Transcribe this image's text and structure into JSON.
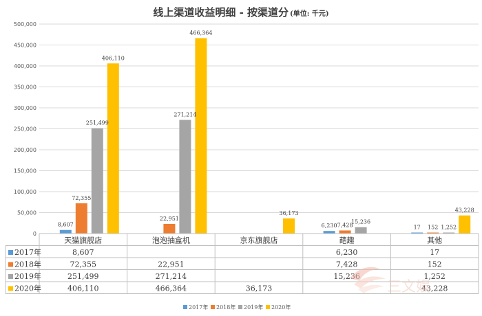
{
  "chart_data": {
    "type": "bar",
    "title": "线上渠道收益明细 - 按渠道分",
    "unit": "(单位: 千元)",
    "categories": [
      "天猫旗舰店",
      "泡泡抽盒机",
      "京东旗舰店",
      "葩趣",
      "其他"
    ],
    "series": [
      {
        "name": "2017年",
        "color": "#5B9BD5",
        "values": [
          8607,
          null,
          null,
          6230,
          17
        ],
        "labels": [
          "8,607",
          "",
          "",
          "6,230",
          "17"
        ]
      },
      {
        "name": "2018年",
        "color": "#ED7D31",
        "values": [
          72355,
          22951,
          null,
          7428,
          152
        ],
        "labels": [
          "72,355",
          "22,951",
          "",
          "7,428",
          "152"
        ]
      },
      {
        "name": "2019年",
        "color": "#A5A5A5",
        "values": [
          251499,
          271214,
          null,
          15236,
          1252
        ],
        "labels": [
          "251,499",
          "271,214",
          "",
          "15,236",
          "1,252"
        ]
      },
      {
        "name": "2020年",
        "color": "#FFC000",
        "values": [
          406110,
          466364,
          36173,
          null,
          43228
        ],
        "labels": [
          "406,110",
          "466,364",
          "36,173",
          "",
          "43,228"
        ]
      }
    ],
    "y_ticks": [
      "0",
      "50,000",
      "100,000",
      "150,000",
      "200,000",
      "250,000",
      "300,000",
      "350,000",
      "400,000",
      "450,000",
      "500,000"
    ],
    "ylim": [
      0,
      500000
    ],
    "grid": true,
    "legend_position": "bottom",
    "table_below": true
  },
  "watermark": "三文娱"
}
